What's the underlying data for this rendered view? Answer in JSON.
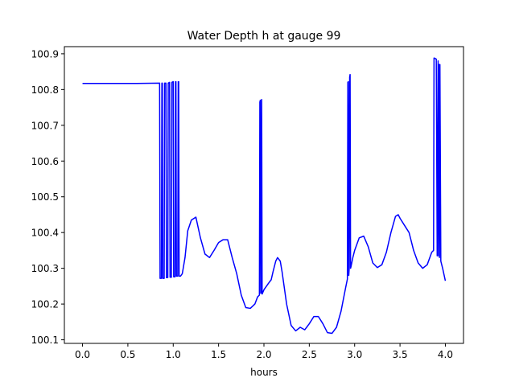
{
  "chart_data": {
    "type": "line",
    "title": "Water Depth h at gauge 99",
    "xlabel": "hours",
    "ylabel": "",
    "xlim": [
      -0.2,
      4.2
    ],
    "ylim": [
      100.09,
      100.92
    ],
    "grid": false,
    "x_ticks": [
      0.0,
      0.5,
      1.0,
      1.5,
      2.0,
      2.5,
      3.0,
      3.5,
      4.0
    ],
    "x_tick_labels": [
      "0.0",
      "0.5",
      "1.0",
      "1.5",
      "2.0",
      "2.5",
      "3.0",
      "3.5",
      "4.0"
    ],
    "y_ticks": [
      100.1,
      100.2,
      100.3,
      100.4,
      100.5,
      100.6,
      100.7,
      100.8,
      100.9
    ],
    "y_tick_labels": [
      "100.1",
      "100.2",
      "100.3",
      "100.4",
      "100.5",
      "100.6",
      "100.7",
      "100.8",
      "100.9"
    ],
    "series": [
      {
        "color": "#0000ff",
        "x": [
          0.0,
          0.3,
          0.6,
          0.85,
          0.855,
          0.87,
          0.875,
          0.88,
          0.885,
          0.9,
          0.905,
          0.92,
          0.925,
          0.94,
          0.945,
          0.96,
          0.965,
          0.98,
          0.985,
          1.0,
          1.005,
          1.02,
          1.025,
          1.03,
          1.035,
          1.05,
          1.055,
          1.06,
          1.065,
          1.08,
          1.1,
          1.13,
          1.16,
          1.2,
          1.25,
          1.3,
          1.35,
          1.4,
          1.45,
          1.5,
          1.55,
          1.6,
          1.65,
          1.7,
          1.75,
          1.8,
          1.85,
          1.9,
          1.93,
          1.95,
          1.955,
          1.96,
          1.965,
          1.97,
          1.975,
          1.98,
          2.0,
          2.05,
          2.08,
          2.1,
          2.13,
          2.15,
          2.18,
          2.2,
          2.25,
          2.3,
          2.35,
          2.4,
          2.45,
          2.5,
          2.55,
          2.6,
          2.65,
          2.7,
          2.75,
          2.8,
          2.85,
          2.9,
          2.92,
          2.925,
          2.93,
          2.935,
          2.94,
          2.945,
          2.95,
          2.955,
          2.96,
          2.98,
          3.0,
          3.05,
          3.1,
          3.15,
          3.2,
          3.25,
          3.3,
          3.35,
          3.4,
          3.45,
          3.48,
          3.5,
          3.55,
          3.6,
          3.65,
          3.7,
          3.75,
          3.8,
          3.85,
          3.87,
          3.875,
          3.88,
          3.9,
          3.91,
          3.92,
          3.925,
          3.93,
          3.935,
          3.94,
          3.95,
          3.97,
          4.0
        ],
        "y": [
          100.817,
          100.817,
          100.817,
          100.818,
          100.272,
          100.272,
          100.818,
          100.818,
          100.272,
          100.272,
          100.818,
          100.818,
          100.274,
          100.274,
          100.818,
          100.82,
          100.275,
          100.275,
          100.82,
          100.822,
          100.276,
          100.276,
          100.822,
          100.822,
          100.278,
          100.278,
          100.822,
          100.822,
          100.278,
          100.278,
          100.285,
          100.33,
          100.405,
          100.435,
          100.443,
          100.385,
          100.34,
          100.33,
          100.35,
          100.372,
          100.38,
          100.38,
          100.33,
          100.285,
          100.225,
          100.19,
          100.188,
          100.2,
          100.22,
          100.225,
          100.765,
          100.77,
          100.23,
          100.232,
          100.772,
          100.228,
          100.24,
          100.258,
          100.268,
          100.29,
          100.32,
          100.33,
          100.32,
          100.29,
          100.2,
          100.14,
          100.125,
          100.135,
          100.128,
          100.145,
          100.165,
          100.165,
          100.145,
          100.12,
          100.118,
          100.135,
          100.18,
          100.245,
          100.27,
          100.82,
          100.822,
          100.28,
          100.3,
          100.835,
          100.842,
          100.3,
          100.305,
          100.33,
          100.35,
          100.385,
          100.39,
          100.36,
          100.315,
          100.302,
          100.31,
          100.345,
          100.4,
          100.445,
          100.45,
          100.44,
          100.42,
          100.4,
          100.35,
          100.315,
          100.3,
          100.31,
          100.345,
          100.35,
          100.888,
          100.888,
          100.885,
          100.335,
          100.88,
          100.335,
          100.87,
          100.33,
          100.87,
          100.32,
          100.3,
          100.265
        ]
      }
    ]
  }
}
